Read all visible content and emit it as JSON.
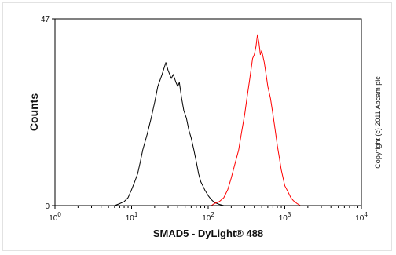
{
  "chart_data": {
    "type": "line",
    "xlabel": "SMAD5 - DyLight® 488",
    "ylabel": "Counts",
    "x_scale": "log",
    "xlim": [
      1,
      10000
    ],
    "ylim": [
      0,
      47
    ],
    "x_ticks": [
      {
        "value": 1,
        "base": "10",
        "exp": "0"
      },
      {
        "value": 10,
        "base": "10",
        "exp": "1"
      },
      {
        "value": 100,
        "base": "10",
        "exp": "2"
      },
      {
        "value": 1000,
        "base": "10",
        "exp": "3"
      },
      {
        "value": 10000,
        "base": "10",
        "exp": "4"
      }
    ],
    "y_ticks": [
      {
        "value": 0,
        "label": "0"
      },
      {
        "value": 47,
        "label": "47"
      }
    ],
    "grid": false,
    "legend": "none",
    "series": [
      {
        "color": "#000000",
        "points": [
          [
            6,
            0
          ],
          [
            7,
            0.5
          ],
          [
            8,
            1
          ],
          [
            9,
            2
          ],
          [
            10,
            4
          ],
          [
            11,
            6
          ],
          [
            12,
            8
          ],
          [
            13,
            11
          ],
          [
            14,
            14
          ],
          [
            16,
            18
          ],
          [
            18,
            22
          ],
          [
            20,
            26
          ],
          [
            22,
            30
          ],
          [
            25,
            33
          ],
          [
            28,
            36
          ],
          [
            30,
            34
          ],
          [
            33,
            32
          ],
          [
            35,
            33
          ],
          [
            38,
            31
          ],
          [
            40,
            30
          ],
          [
            42,
            31
          ],
          [
            45,
            27
          ],
          [
            48,
            24
          ],
          [
            52,
            22
          ],
          [
            56,
            19
          ],
          [
            60,
            17
          ],
          [
            65,
            14
          ],
          [
            70,
            11
          ],
          [
            75,
            8
          ],
          [
            80,
            6
          ],
          [
            85,
            5
          ],
          [
            90,
            4
          ],
          [
            100,
            2.5
          ],
          [
            110,
            1.5
          ],
          [
            120,
            0.8
          ],
          [
            140,
            0.3
          ],
          [
            160,
            0
          ]
        ]
      },
      {
        "color": "#ff0000",
        "points": [
          [
            110,
            0
          ],
          [
            120,
            0.5
          ],
          [
            140,
            1
          ],
          [
            160,
            2
          ],
          [
            180,
            4
          ],
          [
            200,
            7
          ],
          [
            220,
            10
          ],
          [
            250,
            14
          ],
          [
            270,
            18
          ],
          [
            300,
            23
          ],
          [
            320,
            27
          ],
          [
            350,
            32
          ],
          [
            380,
            37
          ],
          [
            400,
            38
          ],
          [
            420,
            40
          ],
          [
            440,
            43
          ],
          [
            460,
            41
          ],
          [
            480,
            38
          ],
          [
            500,
            39
          ],
          [
            540,
            36
          ],
          [
            570,
            33
          ],
          [
            600,
            30
          ],
          [
            650,
            27
          ],
          [
            700,
            23
          ],
          [
            750,
            19
          ],
          [
            800,
            15
          ],
          [
            850,
            12
          ],
          [
            900,
            9
          ],
          [
            950,
            7
          ],
          [
            1000,
            5
          ],
          [
            1100,
            3.5
          ],
          [
            1200,
            2
          ],
          [
            1300,
            1.2
          ],
          [
            1450,
            0.5
          ],
          [
            1600,
            0
          ]
        ]
      }
    ]
  },
  "copyright": "Copyright (c) 2011 Abcam plc"
}
